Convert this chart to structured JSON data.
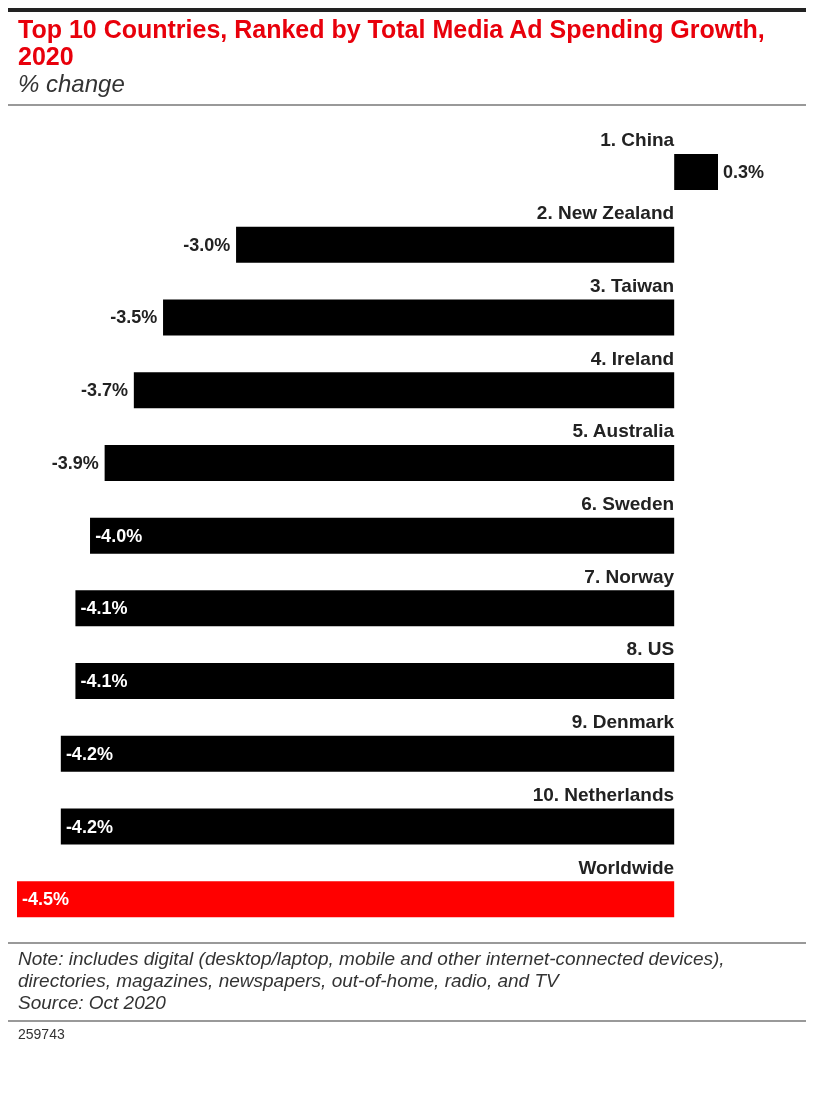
{
  "chart_data": {
    "type": "bar",
    "orientation": "horizontal",
    "title": "Top 10 Countries, Ranked by Total Media Ad Spending Growth, 2020",
    "subtitle": "% change",
    "categories": [
      "1. China",
      "2. New Zealand",
      "3. Taiwan",
      "4. Ireland",
      "5. Australia",
      "6. Sweden",
      "7. Norway",
      "8. US",
      "9. Denmark",
      "10. Netherlands",
      "Worldwide"
    ],
    "values": [
      0.3,
      -3.0,
      -3.5,
      -3.7,
      -3.9,
      -4.0,
      -4.1,
      -4.1,
      -4.2,
      -4.2,
      -4.5
    ],
    "value_labels": [
      "0.3%",
      "-3.0%",
      "-3.5%",
      "-3.7%",
      "-3.9%",
      "-4.0%",
      "-4.1%",
      "-4.1%",
      "-4.2%",
      "-4.2%",
      "-4.5%"
    ],
    "colors": [
      "#000000",
      "#000000",
      "#000000",
      "#000000",
      "#000000",
      "#000000",
      "#000000",
      "#000000",
      "#000000",
      "#000000",
      "#ff0000"
    ],
    "annotations": [
      "Note: includes digital (desktop/laptop, mobile and other internet-connected devices), directories, magazines, newspapers, out-of-home, radio, and TV",
      "Source: Oct 2020",
      "259743"
    ]
  }
}
